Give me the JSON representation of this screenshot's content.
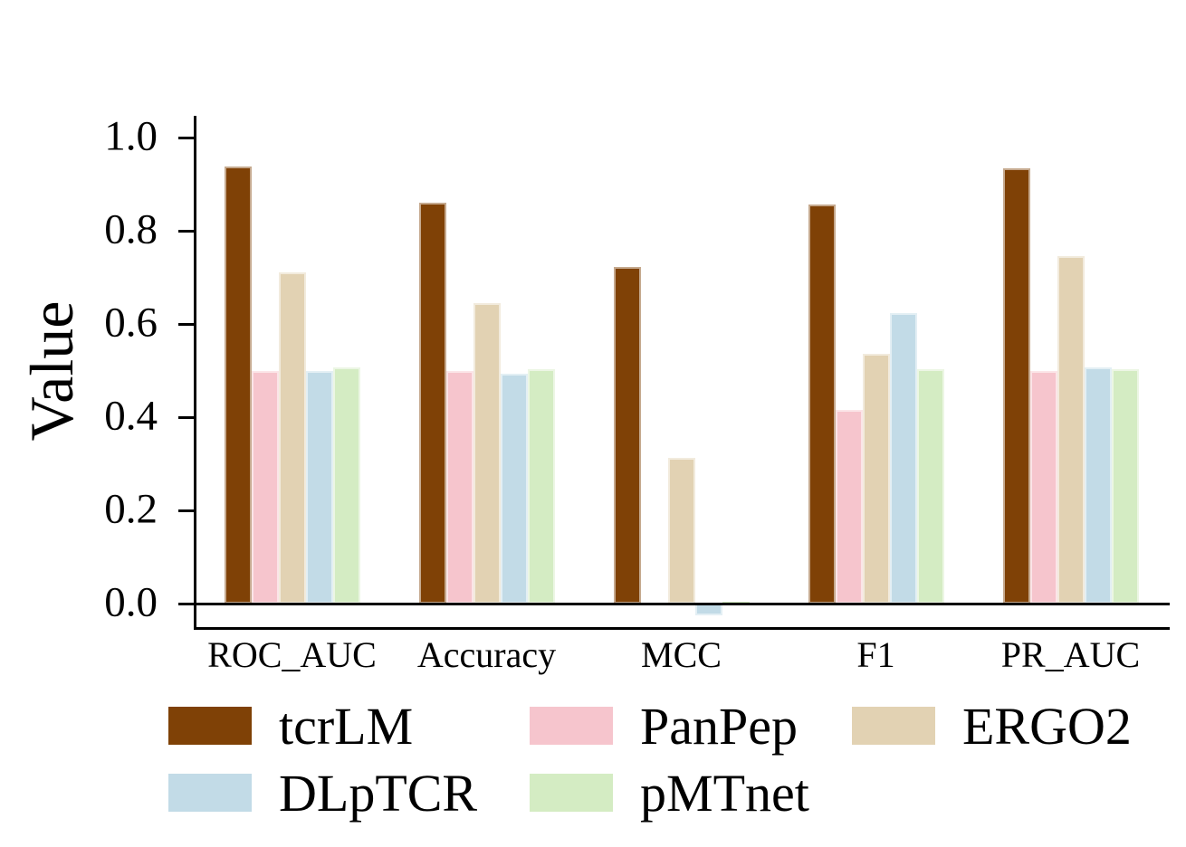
{
  "chart_data": {
    "type": "bar",
    "title": "",
    "xlabel": "",
    "ylabel": "Value",
    "categories": [
      "ROC_AUC",
      "Accuracy",
      "MCC",
      "F1",
      "PR_AUC"
    ],
    "series": [
      {
        "name": "tcrLM",
        "color": "#7f4106",
        "values": [
          0.937,
          0.861,
          0.723,
          0.856,
          0.934
        ]
      },
      {
        "name": "PanPep",
        "color": "#f6c5cd",
        "values": [
          0.499,
          0.5,
          0.001,
          0.415,
          0.499
        ]
      },
      {
        "name": "ERGO2",
        "color": "#e2d2b3",
        "values": [
          0.71,
          0.645,
          0.312,
          0.535,
          0.746
        ]
      },
      {
        "name": "DLpTCR",
        "color": "#c2dbe7",
        "values": [
          0.5,
          0.493,
          -0.025,
          0.624,
          0.507
        ]
      },
      {
        "name": "pMTnet",
        "color": "#d4ecc3",
        "values": [
          0.507,
          0.502,
          0.004,
          0.502,
          0.503
        ]
      }
    ],
    "y_ticks": [
      "0.0",
      "0.2",
      "0.4",
      "0.6",
      "0.8",
      "1.0"
    ],
    "ylim": [
      -0.055,
      1.045
    ],
    "grid": false,
    "zero_line": true,
    "legend_position": "bottom",
    "legend_columns": 3,
    "axis_color": "#000000",
    "bar_edge_color": "rgba(255,255,255,0.55)"
  }
}
